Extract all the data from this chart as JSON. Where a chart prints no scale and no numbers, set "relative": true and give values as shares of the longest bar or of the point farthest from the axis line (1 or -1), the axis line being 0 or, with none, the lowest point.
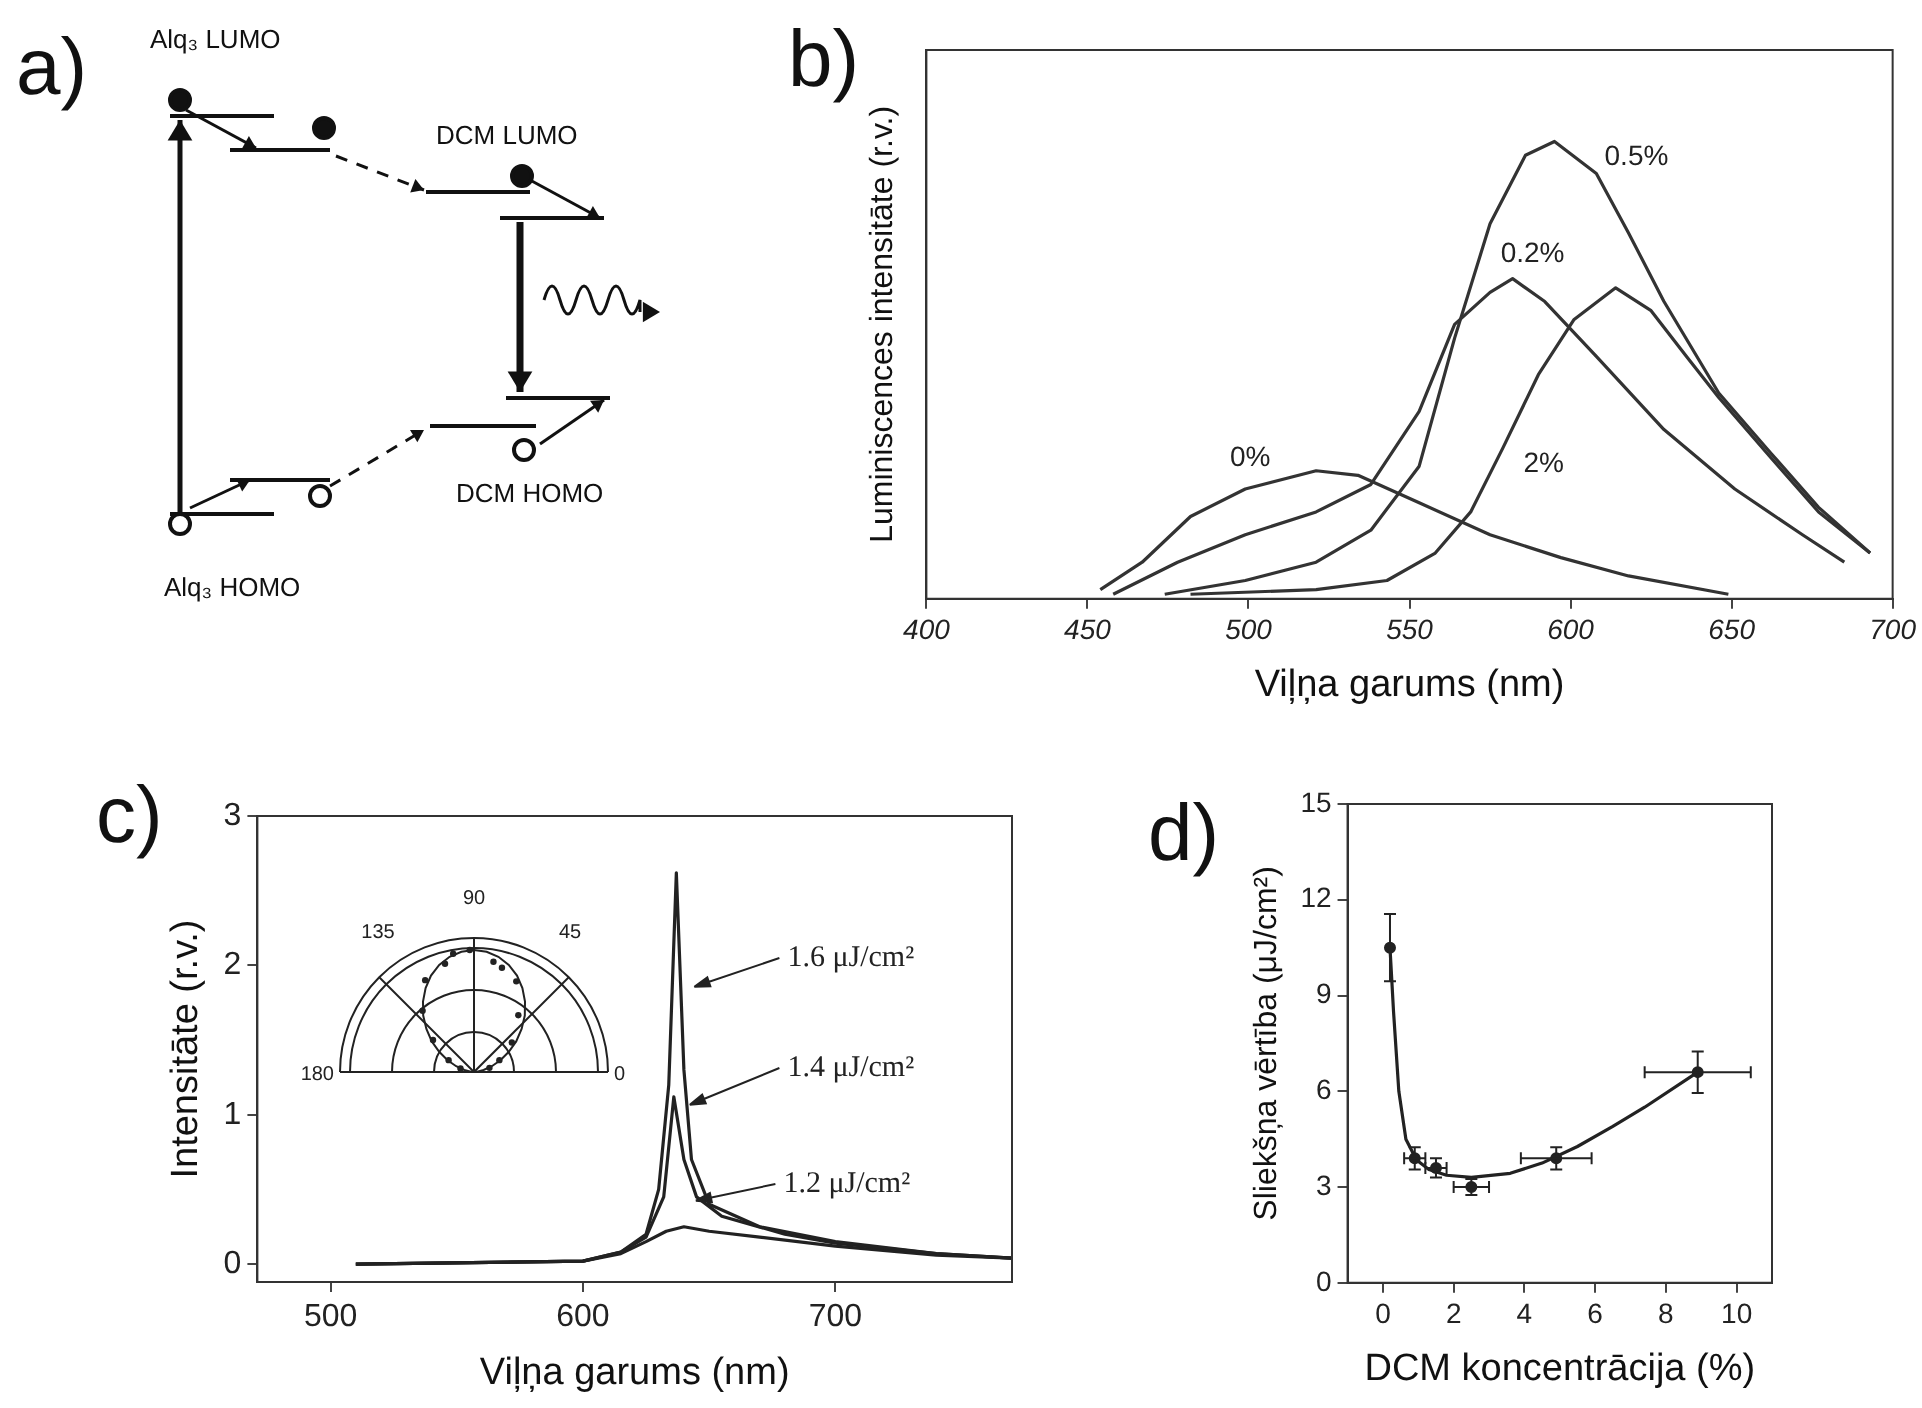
{
  "chart_data": [
    {
      "type": "other",
      "title": "a)",
      "annotations": [
        "Alq₃ LUMO",
        "DCM LUMO",
        "DCM HOMO",
        "Alq₃ HOMO"
      ]
    },
    {
      "type": "line",
      "title": "b)",
      "xlabel": "Viļņa garums (nm)",
      "ylabel": "Luminiscences intensitāte (r.v.)",
      "relative": true,
      "xlim": [
        400,
        700
      ],
      "xticks": [
        400,
        450,
        500,
        550,
        600,
        650,
        700
      ],
      "series": [
        {
          "name": "0%",
          "color": "#333333",
          "x": [
            454,
            467,
            482,
            499,
            521,
            534,
            553,
            575,
            597,
            618,
            649
          ],
          "values": [
            0.02,
            0.08,
            0.18,
            0.24,
            0.28,
            0.27,
            0.21,
            0.14,
            0.09,
            0.05,
            0.01
          ]
        },
        {
          "name": "0.2%",
          "color": "#333333",
          "x": [
            458,
            478,
            499,
            521,
            538,
            553,
            564,
            575,
            582,
            592,
            608,
            629,
            651,
            672,
            685
          ],
          "values": [
            0.01,
            0.08,
            0.14,
            0.19,
            0.25,
            0.41,
            0.6,
            0.67,
            0.7,
            0.65,
            0.53,
            0.37,
            0.24,
            0.14,
            0.08
          ]
        },
        {
          "name": "0.5%",
          "color": "#333333",
          "x": [
            474,
            499,
            521,
            538,
            553,
            564,
            575,
            586,
            595,
            608,
            618,
            629,
            646,
            662,
            677,
            693
          ],
          "values": [
            0.01,
            0.04,
            0.08,
            0.15,
            0.29,
            0.57,
            0.82,
            0.97,
            1,
            0.93,
            0.8,
            0.65,
            0.45,
            0.32,
            0.2,
            0.1
          ]
        },
        {
          "name": "2%",
          "color": "#333333",
          "x": [
            482,
            521,
            543,
            558,
            569,
            579,
            590,
            601,
            614,
            625,
            636,
            646,
            662,
            677,
            693
          ],
          "values": [
            0.01,
            0.02,
            0.04,
            0.1,
            0.19,
            0.33,
            0.49,
            0.61,
            0.68,
            0.63,
            0.53,
            0.44,
            0.31,
            0.19,
            0.1
          ]
        }
      ]
    },
    {
      "type": "line",
      "title": "c)",
      "xlabel": "Viļņa garums (nm)",
      "ylabel": "Intensitāte (r.v.)",
      "legend": "right",
      "xlim": [
        471,
        770
      ],
      "xticks": [
        500,
        600,
        700
      ],
      "ylim": [
        -0.12,
        3
      ],
      "yticks": [
        0,
        1,
        2,
        3
      ],
      "series": [
        {
          "name": "1.6 μJ/cm²",
          "color": "#222222",
          "x": [
            510,
            600,
            615,
            625,
            630,
            634,
            637,
            640,
            643,
            650,
            670,
            700,
            740,
            770
          ],
          "values": [
            0,
            0.02,
            0.08,
            0.2,
            0.5,
            1.2,
            2.62,
            1.3,
            0.7,
            0.4,
            0.25,
            0.15,
            0.07,
            0.04
          ]
        },
        {
          "name": "1.4 μJ/cm²",
          "color": "#222222",
          "x": [
            510,
            600,
            615,
            625,
            632,
            636,
            640,
            645,
            655,
            680,
            700,
            740,
            770
          ],
          "values": [
            0,
            0.02,
            0.08,
            0.18,
            0.45,
            1.12,
            0.7,
            0.45,
            0.32,
            0.2,
            0.14,
            0.07,
            0.04
          ]
        },
        {
          "name": "1.2 μJ/cm²",
          "color": "#222222",
          "x": [
            510,
            600,
            615,
            625,
            633,
            640,
            650,
            670,
            700,
            740,
            770
          ],
          "values": [
            0,
            0.02,
            0.07,
            0.15,
            0.22,
            0.25,
            0.22,
            0.18,
            0.12,
            0.06,
            0.04
          ]
        }
      ]
    },
    {
      "type": "other",
      "annotations": [
        "90",
        "135",
        "45",
        "180",
        "0"
      ]
    },
    {
      "type": "scatter",
      "title": "d)",
      "xlabel": "DCM koncentrācija (%)",
      "ylabel": "Sliekšņa vērtība (μJ/cm²)",
      "xlim": [
        -1,
        11
      ],
      "xticks": [
        0,
        2,
        4,
        6,
        8,
        10
      ],
      "ylim": [
        0,
        15
      ],
      "yticks": [
        0,
        3,
        6,
        9,
        12,
        15
      ],
      "marker": "circle",
      "series": [
        {
          "type": "scatter",
          "color": "#222222",
          "x": [
            0.2,
            0.9,
            1.5,
            2.5,
            4.9,
            8.9
          ],
          "values": [
            10.5,
            3.9,
            3.6,
            3.0,
            3.9,
            6.6
          ],
          "errors": [
            1.05,
            0.35,
            0.3,
            0.25,
            0.35,
            0.65
          ],
          "xerrors": [
            null,
            0.3,
            0.3,
            0.5,
            1.0,
            1.5
          ]
        },
        {
          "type": "line",
          "marker": "none",
          "color": "#222222",
          "x": [
            0.2,
            0.3,
            0.45,
            0.65,
            0.95,
            1.3,
            1.8,
            2.5,
            3.6,
            4.5,
            5.5,
            6.5,
            7.4,
            8.9
          ],
          "values": [
            10.5,
            8.5,
            6,
            4.5,
            3.85,
            3.55,
            3.37,
            3.3,
            3.43,
            3.75,
            4.27,
            4.9,
            5.5,
            6.6
          ]
        }
      ]
    }
  ]
}
